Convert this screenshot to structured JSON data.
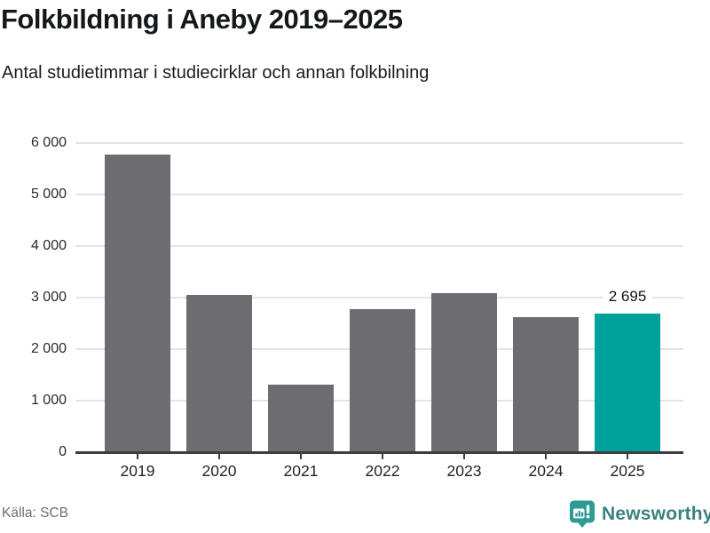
{
  "header": {
    "title": "Folkbildning i Aneby 2019–2025",
    "subtitle": "Antal studietimmar i studiecirklar och annan folkbilning"
  },
  "chart_data": {
    "type": "bar",
    "title": "Folkbildning i Aneby 2019–2025",
    "subtitle": "Antal studietimmar i studiecirklar och annan folkbilning",
    "categories": [
      "2019",
      "2020",
      "2021",
      "2022",
      "2023",
      "2024",
      "2025"
    ],
    "values": [
      5770,
      3060,
      1310,
      2780,
      3080,
      2620,
      2695
    ],
    "highlight_index": 6,
    "highlight_value_label": "2 695",
    "bar_color": "#6d6c70",
    "highlight_color": "#00a29b",
    "xlabel": "",
    "ylabel": "",
    "ylim": [
      0,
      6000
    ],
    "y_ticks": [
      {
        "value": 0,
        "label": "0"
      },
      {
        "value": 1000,
        "label": "1 000"
      },
      {
        "value": 2000,
        "label": "2 000"
      },
      {
        "value": 3000,
        "label": "3 000"
      },
      {
        "value": 4000,
        "label": "4 000"
      },
      {
        "value": 5000,
        "label": "5 000"
      },
      {
        "value": 6000,
        "label": "6 000"
      }
    ],
    "grid": true,
    "legend": false,
    "gridline_color": "#e4e4e4",
    "axis_color": "#3e3e40"
  },
  "footer": {
    "source": "Källa: SCB",
    "brand": "Newsworthy",
    "brand_color": "#3a8380",
    "icon": "newsworthy-speech-bubble-chart-icon",
    "icon_color": "#2d9a94"
  }
}
